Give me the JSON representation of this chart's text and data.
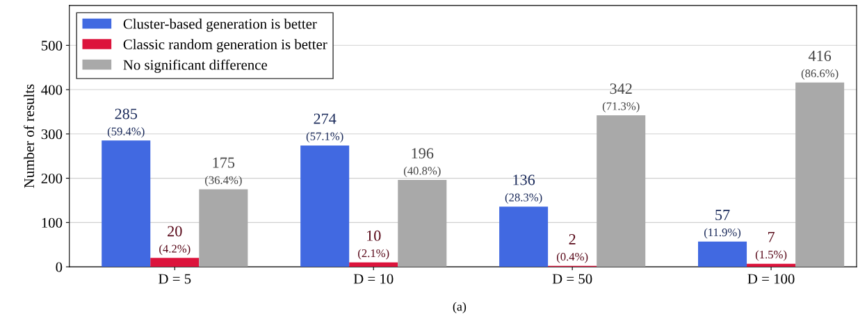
{
  "chart_data": {
    "type": "bar",
    "ylabel": "Number of results",
    "categories": [
      "D = 5",
      "D = 10",
      "D = 50",
      "D = 100"
    ],
    "series": [
      {
        "name": "Cluster-based generation is better",
        "color": "#4169e1",
        "values": [
          285,
          274,
          136,
          57
        ],
        "value_labels": [
          "285\n(59.4%)",
          "274\n(57.1%)",
          "136\n(28.3%)",
          "57\n(11.9%)"
        ]
      },
      {
        "name": "Classic random generation is better",
        "color": "#dc143c",
        "values": [
          20,
          10,
          2,
          7
        ],
        "value_labels": [
          "20\n(4.2%)",
          "10\n(2.1%)",
          "2\n(0.4%)",
          "7\n(1.5%)"
        ]
      },
      {
        "name": "No significant difference",
        "color": "#a9a9a9",
        "values": [
          175,
          196,
          342,
          416
        ],
        "value_labels": [
          "175\n(36.4%)",
          "196\n(40.8%)",
          "342\n(71.3%)",
          "416\n(86.6%)"
        ]
      }
    ],
    "ylim": [
      0,
      590
    ],
    "yticks": [
      0,
      100,
      200,
      300,
      400,
      500
    ],
    "grid": "y",
    "legend": "top left",
    "annotations": [
      "(a)"
    ]
  }
}
